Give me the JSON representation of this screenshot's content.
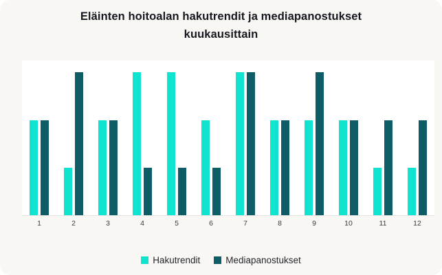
{
  "card": {
    "title": "Eläinten hoitoalan hakutrendit ja mediapanostukset kuukausittain"
  },
  "chart_data": {
    "type": "bar",
    "title": "Eläinten hoitoalan hakutrendit ja mediapanostukset kuukausittain",
    "categories": [
      "1",
      "2",
      "3",
      "4",
      "5",
      "6",
      "7",
      "8",
      "9",
      "10",
      "11",
      "12"
    ],
    "series": [
      {
        "name": "Hakutrendit",
        "color": "#10E3CF",
        "values": [
          2,
          1,
          2,
          3,
          3,
          2,
          3,
          2,
          2,
          2,
          1,
          1
        ]
      },
      {
        "name": "Mediapanostukset",
        "color": "#0D5C66",
        "values": [
          2,
          3,
          2,
          1,
          1,
          1,
          3,
          2,
          3,
          2,
          2,
          2
        ]
      }
    ],
    "xlabel": "",
    "ylabel": "",
    "ylim": [
      0,
      3.25
    ],
    "grid": false,
    "y_axis_labels": false,
    "legend_position": "bottom"
  },
  "colors": {
    "card_background": "#F9F7F4",
    "plot_background": "#FFFFFF",
    "axis_line": "#E3E2E0",
    "title_text": "#17171F",
    "tick_text": "#3B3B3B"
  }
}
